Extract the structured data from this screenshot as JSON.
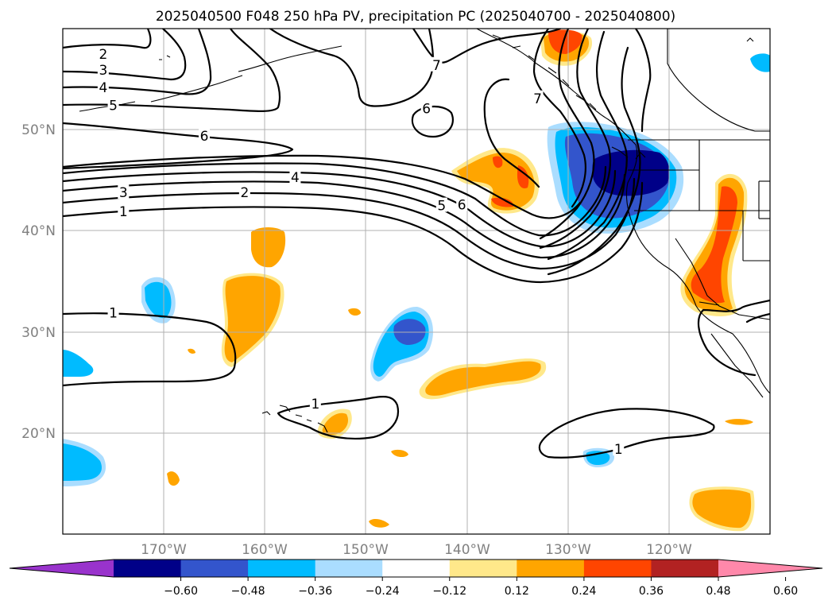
{
  "title": "2025040500 F048 250 hPa PV, precipitation PC (2025040700 - 2025040800)",
  "map": {
    "lon_range": [
      -180,
      -110
    ],
    "lat_range": [
      10,
      60
    ],
    "lon_ticks": [
      {
        "value": -170,
        "label": "170°W"
      },
      {
        "value": -160,
        "label": "160°W"
      },
      {
        "value": -150,
        "label": "150°W"
      },
      {
        "value": -140,
        "label": "140°W"
      },
      {
        "value": -130,
        "label": "130°W"
      },
      {
        "value": -120,
        "label": "120°W"
      }
    ],
    "lat_ticks": [
      {
        "value": 20,
        "label": "20°N"
      },
      {
        "value": 30,
        "label": "30°N"
      },
      {
        "value": 40,
        "label": "40°N"
      },
      {
        "value": 50,
        "label": "50°N"
      }
    ],
    "contour_labels": [
      {
        "text": "2",
        "lon": -176,
        "lat": 57.5
      },
      {
        "text": "3",
        "lon": -176,
        "lat": 55.9
      },
      {
        "text": "4",
        "lon": -176,
        "lat": 54.2
      },
      {
        "text": "5",
        "lon": -175,
        "lat": 52.4
      },
      {
        "text": "6",
        "lon": -166,
        "lat": 49.4
      },
      {
        "text": "4",
        "lon": -157,
        "lat": 45.3
      },
      {
        "text": "3",
        "lon": -174,
        "lat": 43.8
      },
      {
        "text": "2",
        "lon": -162,
        "lat": 43.8
      },
      {
        "text": "1",
        "lon": -174,
        "lat": 41.9
      },
      {
        "text": "7",
        "lon": -143,
        "lat": 56.4
      },
      {
        "text": "7",
        "lon": -133,
        "lat": 53.1
      },
      {
        "text": "6",
        "lon": -144,
        "lat": 52.1
      },
      {
        "text": "5",
        "lon": -142.5,
        "lat": 42.5
      },
      {
        "text": "6",
        "lon": -140.5,
        "lat": 42.6
      },
      {
        "text": "1",
        "lon": -175,
        "lat": 31.9
      },
      {
        "text": "1",
        "lon": -155,
        "lat": 22.9
      },
      {
        "text": "1",
        "lon": -125,
        "lat": 18.4
      }
    ]
  },
  "colorbar": {
    "colors": [
      "#9933cc",
      "#000088",
      "#3355cc",
      "#00bbff",
      "#aaddff",
      "#ffffff",
      "#ffe88a",
      "#ffa500",
      "#ff4500",
      "#b22222",
      "#ff88aa"
    ],
    "tick_labels": [
      "−0.60",
      "−0.48",
      "−0.36",
      "−0.24",
      "−0.12",
      "0.12",
      "0.24",
      "0.36",
      "0.48",
      "0.60"
    ]
  }
}
